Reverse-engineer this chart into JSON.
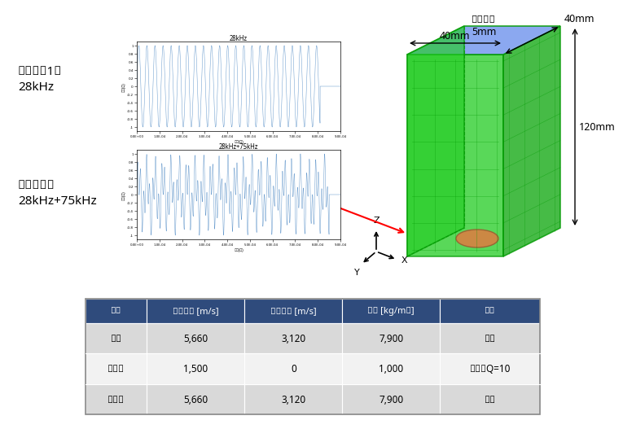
{
  "label1": "送信波形1：\n28kHz",
  "label2": "送信波形：\n28kHz+75kHz",
  "plot1_title": "28kHz",
  "plot2_title": "28kHz+75kHz",
  "xlabel": "時間(秒)",
  "ylabel": "振幅(メ)",
  "freq1": 28000,
  "freq2": 75000,
  "header_color": "#2f4b7c",
  "header_text_color": "#ffffff",
  "row_colors": [
    "#d9d9d9",
    "#f2f2f2",
    "#d9d9d9"
  ],
  "table_headers": [
    "材料",
    "縦波音速 [m/s]",
    "横波音速 [m/s]",
    "密度 [kg/m³]",
    "減衰"
  ],
  "table_rows": [
    [
      "水槽",
      "5,660",
      "3,120",
      "7,900",
      "なし"
    ],
    [
      "洗浄水",
      "1,500",
      "0",
      "1,000",
      "あり：Q=10"
    ],
    [
      "振動子",
      "5,660",
      "3,120",
      "7,900",
      "なし"
    ]
  ],
  "dim_suiso_thickness": "水槽厚さ\n5mm",
  "dim_40mm_top": "40mm",
  "dim_40mm_side": "40mm",
  "dim_120mm": "120mm",
  "green_face": "#22cc22",
  "green_dark": "#18aa18",
  "green_edge": "#009900",
  "blue_top": "#7799ee",
  "brown_color": "#cc8844",
  "waveform_color": "#6699cc"
}
